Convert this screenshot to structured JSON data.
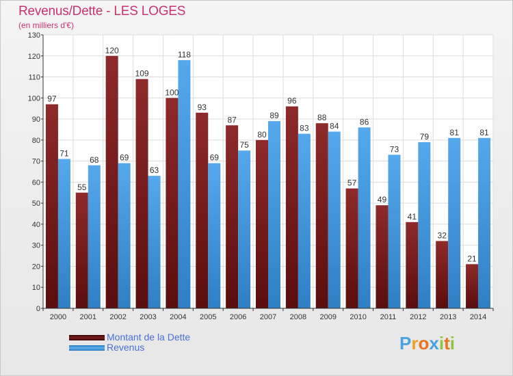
{
  "header": {
    "title": "Revenus/Dette - LES LOGES",
    "subtitle": "(en milliers d'€)"
  },
  "chart_data": {
    "type": "bar",
    "categories": [
      "2000",
      "2001",
      "2002",
      "2003",
      "2004",
      "2005",
      "2006",
      "2007",
      "2008",
      "2009",
      "2010",
      "2011",
      "2012",
      "2013",
      "2014"
    ],
    "series": [
      {
        "name": "Montant de la Dette",
        "color": "#7a1c1c",
        "values": [
          97,
          55,
          120,
          109,
          100,
          93,
          87,
          80,
          96,
          88,
          57,
          49,
          41,
          32,
          21
        ]
      },
      {
        "name": "Revenus",
        "color": "#3d94de",
        "values": [
          71,
          68,
          69,
          63,
          118,
          69,
          75,
          89,
          83,
          84,
          86,
          73,
          79,
          81,
          81
        ]
      }
    ],
    "ylim": [
      0,
      130
    ],
    "yticks": [
      0,
      10,
      20,
      30,
      40,
      50,
      60,
      70,
      80,
      90,
      100,
      110,
      120,
      130
    ],
    "grid": true,
    "legend": "bottom-left"
  },
  "legend": {
    "items": [
      {
        "label": "Montant de la Dette",
        "color": "#6b1a1a"
      },
      {
        "label": "Revenus",
        "color": "#3d94de"
      }
    ]
  },
  "logo": {
    "text": "Proxiti",
    "letters": [
      {
        "ch": "P",
        "color": "#4aa3df"
      },
      {
        "ch": "r",
        "color": "#f0a020"
      },
      {
        "ch": "o",
        "color": "#e9731f"
      },
      {
        "ch": "x",
        "color": "#4aa3df"
      },
      {
        "ch": "i",
        "color": "#8cc63f"
      },
      {
        "ch": "t",
        "color": "#e9731f"
      },
      {
        "ch": "i",
        "color": "#8cc63f"
      }
    ]
  }
}
